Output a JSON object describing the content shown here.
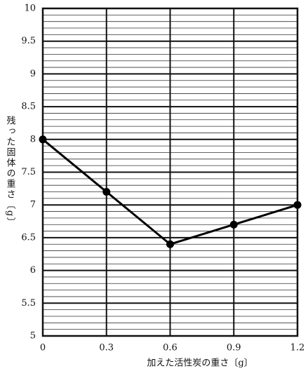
{
  "chart_data": {
    "type": "line",
    "x_label": "加えた活性炭の重さ〔g〕",
    "y_label": "残った固体の重さ〔g〕",
    "x": [
      0,
      0.3,
      0.6,
      0.9,
      1.2
    ],
    "values": [
      8,
      7.2,
      6.4,
      6.7,
      7
    ],
    "color": "#000000",
    "xlim": [
      0,
      1.2
    ],
    "xticks": [
      0,
      0.3,
      0.6,
      0.9,
      1.2
    ],
    "ylim": [
      5,
      10
    ],
    "yticks": [
      5,
      5.5,
      6,
      6.5,
      7,
      7.5,
      8,
      8.5,
      9,
      9.5,
      10
    ],
    "yminorticks": [
      5.1,
      5.2,
      5.3,
      5.4,
      5.6,
      5.7,
      5.8,
      5.9,
      6.1,
      6.2,
      6.3,
      6.4,
      6.6,
      6.7,
      6.8,
      6.9,
      7.1,
      7.2,
      7.3,
      7.4,
      7.6,
      7.7,
      7.8,
      7.9,
      8.1,
      8.2,
      8.3,
      8.4,
      8.6,
      8.7,
      8.8,
      8.9,
      9.1,
      9.2,
      9.3,
      9.4,
      9.6,
      9.7,
      9.8,
      9.9
    ],
    "grid": true
  }
}
